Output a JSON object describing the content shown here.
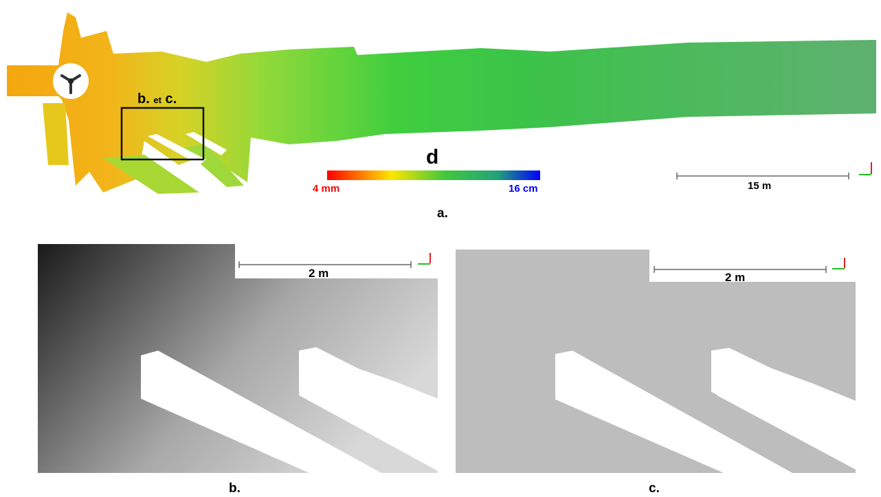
{
  "panel_a": {
    "roi_label_b": "b.",
    "roi_label_et": "et",
    "roi_label_c": "c.",
    "colorbar": {
      "title": "d",
      "min_label": "4 mm",
      "max_label": "16 cm",
      "min_color": "#ff0000",
      "max_color": "#0000ff"
    },
    "scale_label": "15 m",
    "caption": "a."
  },
  "panel_b": {
    "scale_label": "2 m",
    "caption": "b."
  },
  "panel_c": {
    "scale_label": "2 m",
    "caption": "c."
  }
}
